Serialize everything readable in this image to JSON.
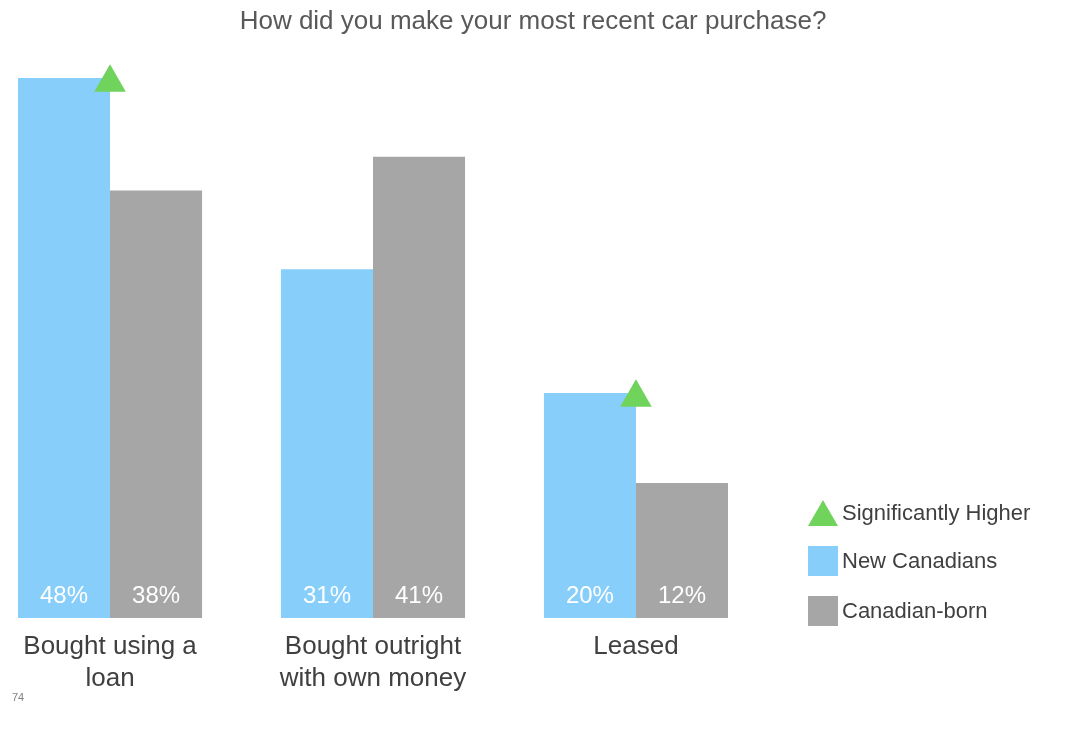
{
  "chart_data": {
    "type": "bar",
    "title": "How did you make your most recent car purchase?",
    "categories": [
      "Bought using a loan",
      "Bought outright with own money",
      "Leased"
    ],
    "series": [
      {
        "name": "Significantly Higher",
        "type": "scatter",
        "marker": "triangle",
        "color": "#6fd35c",
        "values": [
          48,
          null,
          20
        ]
      },
      {
        "name": "New Canadians",
        "color": "#87cefa",
        "values": [
          48,
          31,
          20
        ],
        "value_labels": [
          "48%",
          "31%",
          "20%"
        ]
      },
      {
        "name": "Canadian-born",
        "color": "#a6a6a6",
        "values": [
          38,
          41,
          12
        ],
        "value_labels": [
          "38%",
          "41%",
          "12%"
        ]
      }
    ],
    "legend": "right",
    "annotations": [
      "74"
    ]
  }
}
